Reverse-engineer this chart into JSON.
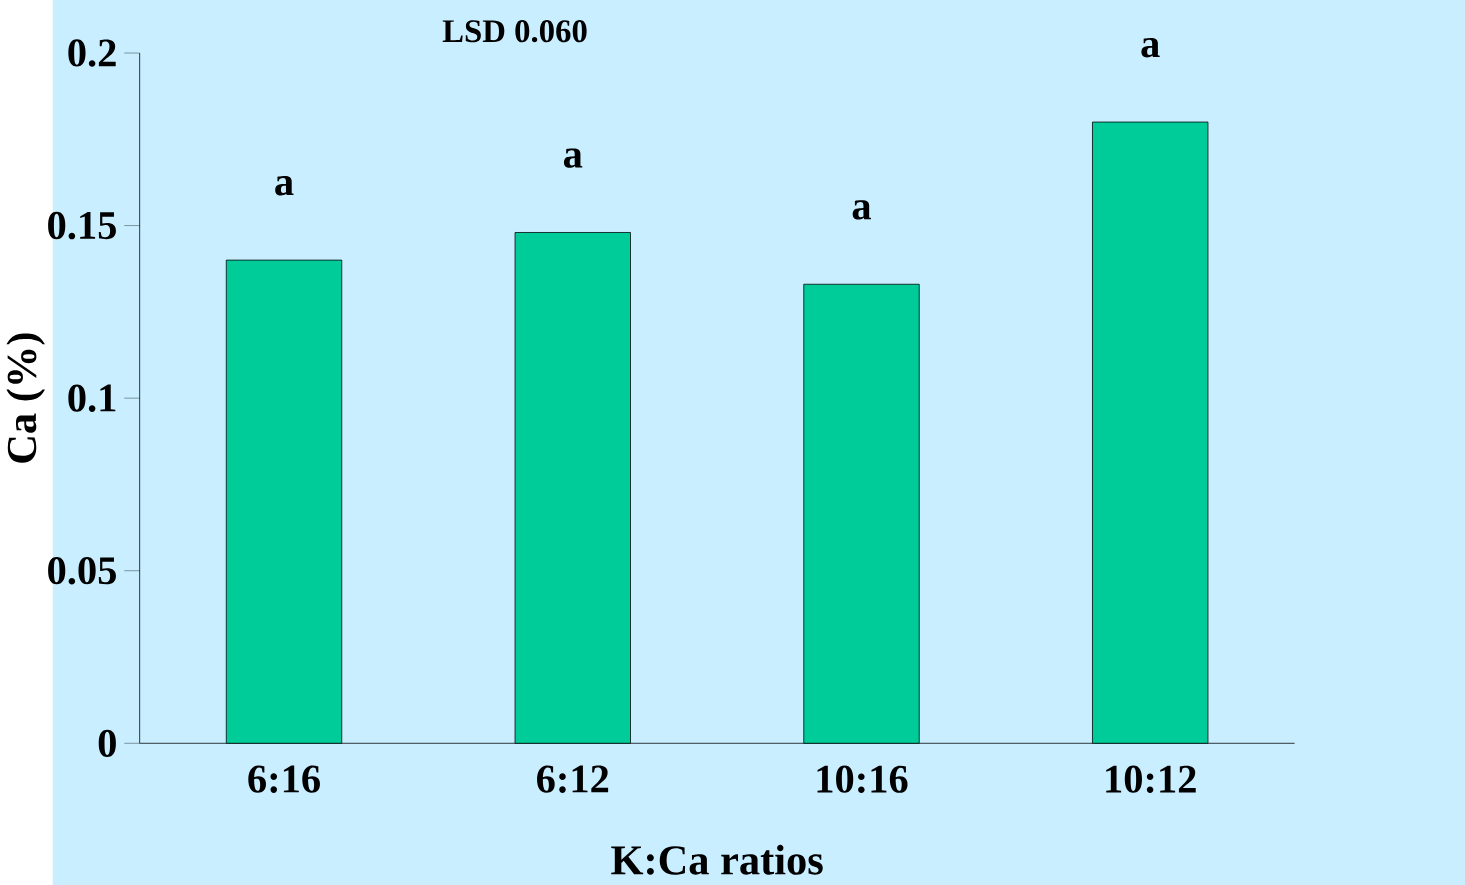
{
  "chart_data": {
    "type": "bar",
    "categories": [
      "6:16",
      "6:12",
      "10:16",
      "10:12"
    ],
    "values": [
      0.14,
      0.148,
      0.133,
      0.18
    ],
    "color": "#00cc99",
    "xlabel": "K:Ca ratios",
    "ylabel": "Ca (%)",
    "ylim": [
      0,
      0.2
    ],
    "yticks": [
      0,
      0.05,
      0.1,
      0.15,
      0.2
    ],
    "annotations": [
      "LSD 0.060",
      {
        "text": "a",
        "x": "6:16",
        "y": 0.14
      },
      {
        "text": "a",
        "x": "6:12",
        "y": 0.148
      },
      {
        "text": "a",
        "x": "10:16",
        "y": 0.133
      },
      {
        "text": "a",
        "x": "10:12",
        "y": 0.18
      }
    ]
  }
}
